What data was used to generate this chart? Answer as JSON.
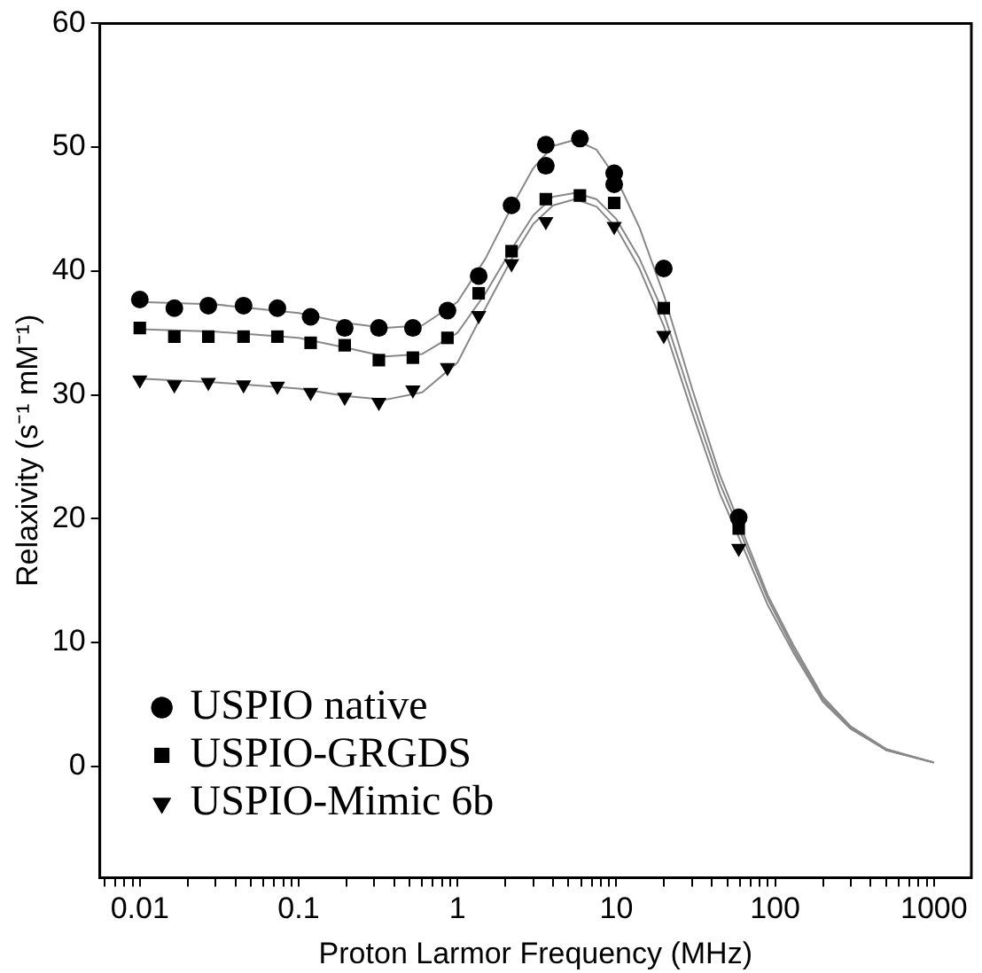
{
  "chart_data": {
    "type": "scatter",
    "xlabel": "Proton Larmor Frequency (MHz)",
    "ylabel": "Relaxivity (s⁻¹ mM⁻¹)",
    "log": "x",
    "xlim": [
      0.0056,
      1720
    ],
    "ylim": [
      -9,
      60
    ],
    "xticks": [
      {
        "value": 0.006,
        "label": null
      },
      {
        "value": 0.007,
        "label": null
      },
      {
        "value": 0.008,
        "label": null
      },
      {
        "value": 0.009,
        "label": null
      },
      0.01,
      {
        "value": 0.02,
        "label": null
      },
      {
        "value": 0.03,
        "label": null
      },
      {
        "value": 0.04,
        "label": null
      },
      {
        "value": 0.05,
        "label": null
      },
      {
        "value": 0.06,
        "label": null
      },
      {
        "value": 0.07,
        "label": null
      },
      {
        "value": 0.08,
        "label": null
      },
      {
        "value": 0.09,
        "label": null
      },
      0.1,
      {
        "value": 0.2,
        "label": null
      },
      {
        "value": 0.3,
        "label": null
      },
      {
        "value": 0.4,
        "label": null
      },
      {
        "value": 0.5,
        "label": null
      },
      {
        "value": 0.6,
        "label": null
      },
      {
        "value": 0.7,
        "label": null
      },
      {
        "value": 0.8,
        "label": null
      },
      {
        "value": 0.9,
        "label": null
      },
      1,
      {
        "value": 2,
        "label": null
      },
      {
        "value": 3,
        "label": null
      },
      {
        "value": 4,
        "label": null
      },
      {
        "value": 5,
        "label": null
      },
      {
        "value": 6,
        "label": null
      },
      {
        "value": 7,
        "label": null
      },
      {
        "value": 8,
        "label": null
      },
      {
        "value": 9,
        "label": null
      },
      10,
      {
        "value": 20,
        "label": null
      },
      {
        "value": 30,
        "label": null
      },
      {
        "value": 40,
        "label": null
      },
      {
        "value": 50,
        "label": null
      },
      {
        "value": 60,
        "label": null
      },
      {
        "value": 70,
        "label": null
      },
      {
        "value": 80,
        "label": null
      },
      {
        "value": 90,
        "label": null
      },
      100,
      {
        "value": 200,
        "label": null
      },
      {
        "value": 300,
        "label": null
      },
      {
        "value": 400,
        "label": null
      },
      {
        "value": 500,
        "label": null
      },
      {
        "value": 600,
        "label": null
      },
      {
        "value": 700,
        "label": null
      },
      {
        "value": 800,
        "label": null
      },
      {
        "value": 900,
        "label": null
      },
      1000
    ],
    "yticks": [
      0,
      10,
      20,
      30,
      40,
      50,
      60
    ],
    "grid": false,
    "legend": "bottom left",
    "series": [
      {
        "type": "line",
        "color": "#888888",
        "marker": "none",
        "x": [
          0.01,
          0.03,
          0.1,
          0.2,
          0.35,
          0.6,
          1,
          1.5,
          2.2,
          3,
          4,
          5.5,
          7.5,
          10,
          14,
          20,
          30,
          45,
          60,
          90,
          130,
          200,
          300,
          500,
          1000
        ],
        "values": [
          37.5,
          37.3,
          36.6,
          35.8,
          35.4,
          35.6,
          37.5,
          41,
          45.2,
          48.3,
          50.1,
          50.6,
          49.8,
          47.5,
          43.5,
          38,
          30.5,
          23.5,
          19.5,
          13.8,
          9.8,
          5.6,
          3.2,
          1.4,
          0.3
        ]
      },
      {
        "type": "line",
        "color": "#888888",
        "marker": "none",
        "x": [
          0.01,
          0.03,
          0.1,
          0.2,
          0.35,
          0.6,
          1,
          1.5,
          2.2,
          3,
          4,
          5.5,
          7.5,
          10,
          14,
          20,
          30,
          45,
          60,
          90,
          130,
          200,
          300,
          500,
          1000
        ],
        "values": [
          35.3,
          35.1,
          34.6,
          33.8,
          33.1,
          33.3,
          35,
          38.2,
          41.8,
          44.5,
          46,
          46.3,
          45.8,
          44.2,
          41,
          36.5,
          29.5,
          22.8,
          19,
          13.5,
          9.5,
          5.4,
          3.1,
          1.3,
          0.3
        ]
      },
      {
        "type": "line",
        "color": "#888888",
        "marker": "none",
        "x": [
          0.01,
          0.03,
          0.1,
          0.2,
          0.35,
          0.6,
          1,
          1.5,
          2.2,
          3,
          4,
          5.5,
          7.5,
          10,
          14,
          20,
          30,
          45,
          60,
          90,
          130,
          200,
          300,
          500,
          1000
        ],
        "values": [
          31.3,
          31,
          30.5,
          29.9,
          29.6,
          30.2,
          32.6,
          37,
          41,
          43.8,
          45.3,
          45.8,
          45.2,
          43.5,
          40.2,
          35.5,
          28.6,
          22,
          18.3,
          13,
          9.2,
          5.2,
          3,
          1.3,
          0.3
        ]
      },
      {
        "name": "USPIO native",
        "color": "#000000",
        "marker": "circle",
        "x": [
          0.01,
          0.0165,
          0.027,
          0.045,
          0.0735,
          0.119,
          0.195,
          0.32,
          0.524,
          0.865,
          1.36,
          2.19,
          3.6,
          3.6,
          5.9,
          9.7,
          9.7,
          19.9,
          59
        ],
        "values": [
          37.7,
          37,
          37.2,
          37.2,
          37,
          36.3,
          35.4,
          35.4,
          35.4,
          36.8,
          39.6,
          45.3,
          48.5,
          50.2,
          50.7,
          47.9,
          47,
          40.2,
          20.1
        ]
      },
      {
        "name": "USPIO-GRGDS",
        "color": "#000000",
        "marker": "square",
        "x": [
          0.01,
          0.0165,
          0.027,
          0.045,
          0.0735,
          0.119,
          0.195,
          0.32,
          0.524,
          0.865,
          1.36,
          2.19,
          3.6,
          5.9,
          9.7,
          19.9,
          59
        ],
        "values": [
          35.4,
          34.7,
          34.7,
          34.7,
          34.7,
          34.2,
          34,
          32.8,
          33,
          34.6,
          38.2,
          41.6,
          45.8,
          46.1,
          45.5,
          37,
          19.2
        ]
      },
      {
        "name": "USPIO-Mimic 6b",
        "color": "#000000",
        "marker": "triangle",
        "x": [
          0.01,
          0.0165,
          0.027,
          0.045,
          0.0735,
          0.119,
          0.195,
          0.32,
          0.524,
          0.865,
          1.36,
          2.19,
          3.6,
          5.9,
          9.7,
          19.9,
          59
        ],
        "values": [
          31.2,
          30.8,
          31,
          30.8,
          30.7,
          30.2,
          29.8,
          29.4,
          30.4,
          32.2,
          36.4,
          40.6,
          44,
          null,
          43.6,
          34.8,
          17.6
        ]
      }
    ]
  }
}
